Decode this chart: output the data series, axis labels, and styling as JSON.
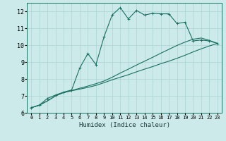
{
  "title": "",
  "xlabel": "Humidex (Indice chaleur)",
  "bg_color": "#cceaea",
  "grid_color": "#aad4d4",
  "line_color": "#1a7060",
  "spine_color": "#1a7060",
  "xlim": [
    -0.5,
    23.5
  ],
  "ylim": [
    6,
    12.5
  ],
  "xticks": [
    0,
    1,
    2,
    3,
    4,
    5,
    6,
    7,
    8,
    9,
    10,
    11,
    12,
    13,
    14,
    15,
    16,
    17,
    18,
    19,
    20,
    21,
    22,
    23
  ],
  "yticks": [
    6,
    7,
    8,
    9,
    10,
    11,
    12
  ],
  "series1_x": [
    0,
    1,
    2,
    3,
    4,
    5,
    6,
    7,
    8,
    9,
    10,
    11,
    12,
    13,
    14,
    15,
    16,
    17,
    18,
    19,
    20,
    21,
    22,
    23
  ],
  "series1_y": [
    6.3,
    6.45,
    6.7,
    7.0,
    7.2,
    7.3,
    7.4,
    7.5,
    7.62,
    7.78,
    7.95,
    8.1,
    8.25,
    8.42,
    8.58,
    8.73,
    8.9,
    9.05,
    9.22,
    9.4,
    9.6,
    9.78,
    9.95,
    10.1
  ],
  "series2_x": [
    0,
    1,
    2,
    3,
    4,
    5,
    6,
    7,
    8,
    9,
    10,
    11,
    12,
    13,
    14,
    15,
    16,
    17,
    18,
    19,
    20,
    21,
    22,
    23
  ],
  "series2_y": [
    6.3,
    6.45,
    6.7,
    7.0,
    7.2,
    7.32,
    7.45,
    7.58,
    7.72,
    7.88,
    8.1,
    8.35,
    8.58,
    8.82,
    9.05,
    9.28,
    9.52,
    9.75,
    9.98,
    10.18,
    10.35,
    10.42,
    10.28,
    10.1
  ],
  "series3_x": [
    0,
    1,
    2,
    3,
    4,
    5,
    6,
    7,
    8,
    9,
    10,
    11,
    12,
    13,
    14,
    15,
    16,
    17,
    18,
    19,
    20,
    21,
    22,
    23
  ],
  "series3_y": [
    6.3,
    6.45,
    6.85,
    7.05,
    7.22,
    7.35,
    8.65,
    9.5,
    8.85,
    10.5,
    11.78,
    12.22,
    11.55,
    12.05,
    11.78,
    11.88,
    11.85,
    11.85,
    11.28,
    11.35,
    10.25,
    10.3,
    10.25,
    10.1
  ]
}
